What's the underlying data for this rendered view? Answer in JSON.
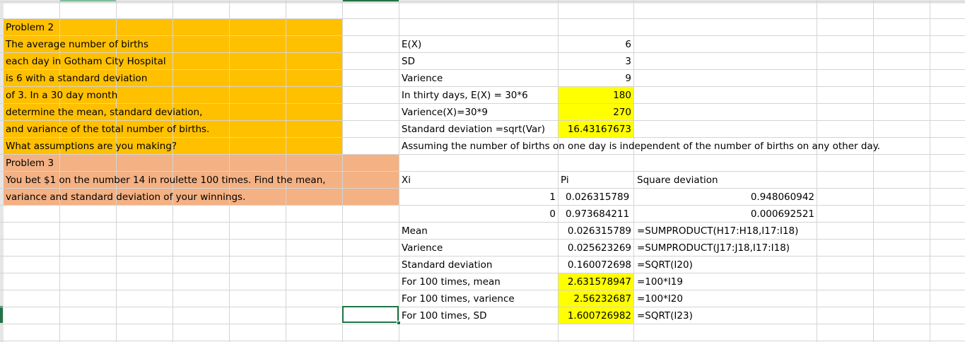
{
  "colors": {
    "orange": "#FFC000",
    "salmon": "#F4B183",
    "yellow": "#FFFF00",
    "selection": "#217346"
  },
  "problem2": {
    "lines": [
      "Problem 2",
      "The  average number of births",
      "each day in Gotham City Hospital",
      "is 6 with a standard deviation",
      "of 3. In a 30 day month",
      "determine the mean, standard deviation,",
      "and variance of the total number of births.",
      "What assumptions are you making?"
    ]
  },
  "problem3": {
    "lines": [
      "Problem 3",
      "You bet $1 on the number 14 in roulette 100 times. Find the mean,",
      "variance and standard deviation of your winnings."
    ]
  },
  "calc2": {
    "rows": [
      {
        "label": "E(X)",
        "value": "6"
      },
      {
        "label": "SD",
        "value": "3"
      },
      {
        "label": "Varience",
        "value": "9"
      },
      {
        "label": "In thirty days, E(X) = 30*6",
        "value": "180"
      },
      {
        "label": "Varience(X)=30*9",
        "value": "270"
      },
      {
        "label": "Standard deviation =sqrt(Var)",
        "value": "16.43167673"
      }
    ],
    "assumption": "Assuming the number of births on one day is independent of the number of births on any other day."
  },
  "calc3": {
    "headers": {
      "xi": "Xi",
      "pi": "Pi",
      "sqdev": "Square deviation"
    },
    "data": [
      {
        "xi": "1",
        "pi": "0.026315789",
        "sqdev": "0.948060942"
      },
      {
        "xi": "0",
        "pi": "0.973684211",
        "sqdev": "0.000692521"
      }
    ],
    "stats": [
      {
        "label": "Mean",
        "value": "0.026315789",
        "formula": "=SUMPRODUCT(H17:H18,I17:I18)"
      },
      {
        "label": "Varience",
        "value": "0.025623269",
        "formula": "=SUMPRODUCT(J17:J18,I17:I18)"
      },
      {
        "label": "Standard deviation",
        "value": "0.160072698",
        "formula": "=SQRT(I20)"
      },
      {
        "label": "For 100 times, mean",
        "value": "2.631578947",
        "formula": "=100*I19"
      },
      {
        "label": "For 100 times, varience",
        "value": "2.56232687",
        "formula": "=100*I20"
      },
      {
        "label": "For 100 times, SD",
        "value": "1.600726982",
        "formula": "=SQRT(I23)"
      }
    ]
  }
}
